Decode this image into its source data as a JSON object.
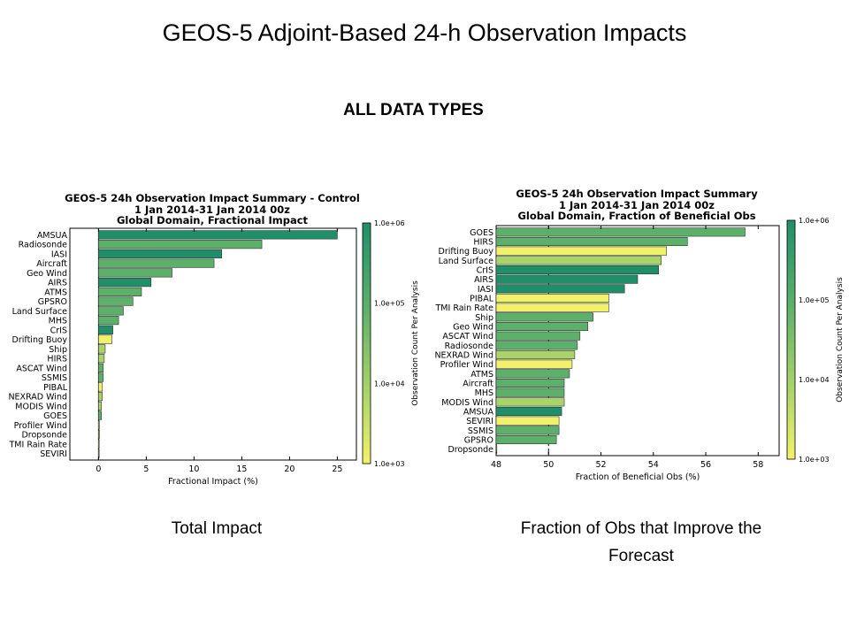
{
  "slide": {
    "title": "GEOS-5 Adjoint-Based 24-h Observation Impacts",
    "subtitle": "ALL DATA TYPES",
    "caption_left": "Total Impact",
    "caption_right": "Fraction of Obs that Improve the Forecast"
  },
  "colors": {
    "dark_green": "#1f8f6a",
    "mid_green": "#5cb06a",
    "light_green": "#a9d46a",
    "yellow": "#f1f26a",
    "bar_edge": "#333333"
  },
  "chart_data": [
    {
      "type": "bar",
      "orientation": "horizontal",
      "title": "GEOS-5 24h Observation Impact Summary - Control",
      "subtitle_lines": [
        "1 Jan 2014-31 Jan 2014 00z",
        "Global Domain, Fractional Impact"
      ],
      "xlabel": "Fractional Impact (%)",
      "xlim": [
        -3,
        27
      ],
      "xticks": [
        0,
        5,
        10,
        15,
        20,
        25
      ],
      "reference_line": 0,
      "colorbar": {
        "label": "Observation Count Per Analysis",
        "ticks": [
          "1.0e+06",
          "1.0e+05",
          "1.0e+04",
          "1.0e+03"
        ]
      },
      "categories": [
        "AMSUA",
        "Radiosonde",
        "IASI",
        "Aircraft",
        "Geo Wind",
        "AIRS",
        "ATMS",
        "GPSRO",
        "Land Surface",
        "MHS",
        "CrIS",
        "Drifting Buoy",
        "Ship",
        "HIRS",
        "ASCAT Wind",
        "SSMIS",
        "PIBAL",
        "NEXRAD Wind",
        "MODIS Wind",
        "GOES",
        "Profiler Wind",
        "Dropsonde",
        "TMI Rain Rate",
        "SEVIRI"
      ],
      "values": [
        25.0,
        17.1,
        12.9,
        12.1,
        7.7,
        5.5,
        4.5,
        3.6,
        2.6,
        2.1,
        1.5,
        1.4,
        0.7,
        0.6,
        0.5,
        0.5,
        0.4,
        0.4,
        0.3,
        0.3,
        0.1,
        0.1,
        0.05,
        0.05
      ],
      "obs_class": [
        "dark",
        "mid",
        "dark",
        "mid",
        "mid",
        "dark",
        "mid",
        "mid",
        "mid",
        "mid",
        "dark",
        "yellow",
        "light",
        "light",
        "mid",
        "mid",
        "yellow",
        "light",
        "light",
        "mid",
        "yellow",
        "light",
        "yellow",
        "light"
      ]
    },
    {
      "type": "bar",
      "orientation": "horizontal",
      "title": "GEOS-5 24h Observation Impact Summary",
      "subtitle_lines": [
        "1 Jan 2014-31 Jan 2014 00z",
        "Global Domain, Fraction of Beneficial Obs"
      ],
      "xlabel": "Fraction of Beneficial Obs (%)",
      "xlim": [
        48,
        58.8
      ],
      "xticks": [
        48,
        50,
        52,
        54,
        56,
        58
      ],
      "reference_line": 50,
      "colorbar": {
        "label": "Observation Count Per Analysis",
        "ticks": [
          "1.0e+06",
          "1.0e+05",
          "1.0e+04",
          "1.0e+03"
        ]
      },
      "categories": [
        "GOES",
        "HIRS",
        "Drifting Buoy",
        "Land Surface",
        "CrIS",
        "AIRS",
        "IASI",
        "PIBAL",
        "TMI Rain Rate",
        "Ship",
        "Geo Wind",
        "ASCAT Wind",
        "Radiosonde",
        "NEXRAD Wind",
        "Profiler Wind",
        "ATMS",
        "Aircraft",
        "MHS",
        "MODIS Wind",
        "AMSUA",
        "SEVIRI",
        "SSMIS",
        "GPSRO",
        "Dropsonde"
      ],
      "values": [
        57.5,
        55.3,
        54.5,
        54.3,
        54.2,
        53.4,
        52.9,
        52.3,
        52.3,
        51.7,
        51.5,
        51.2,
        51.1,
        51.0,
        50.9,
        50.8,
        50.6,
        50.6,
        50.6,
        50.5,
        50.4,
        50.4,
        50.3,
        48.0
      ],
      "obs_class": [
        "mid",
        "mid",
        "yellow",
        "light",
        "dark",
        "dark",
        "dark",
        "yellow",
        "yellow",
        "mid",
        "mid",
        "mid",
        "mid",
        "light",
        "yellow",
        "mid",
        "mid",
        "mid",
        "light",
        "dark",
        "yellow",
        "mid",
        "mid",
        "light"
      ]
    }
  ]
}
